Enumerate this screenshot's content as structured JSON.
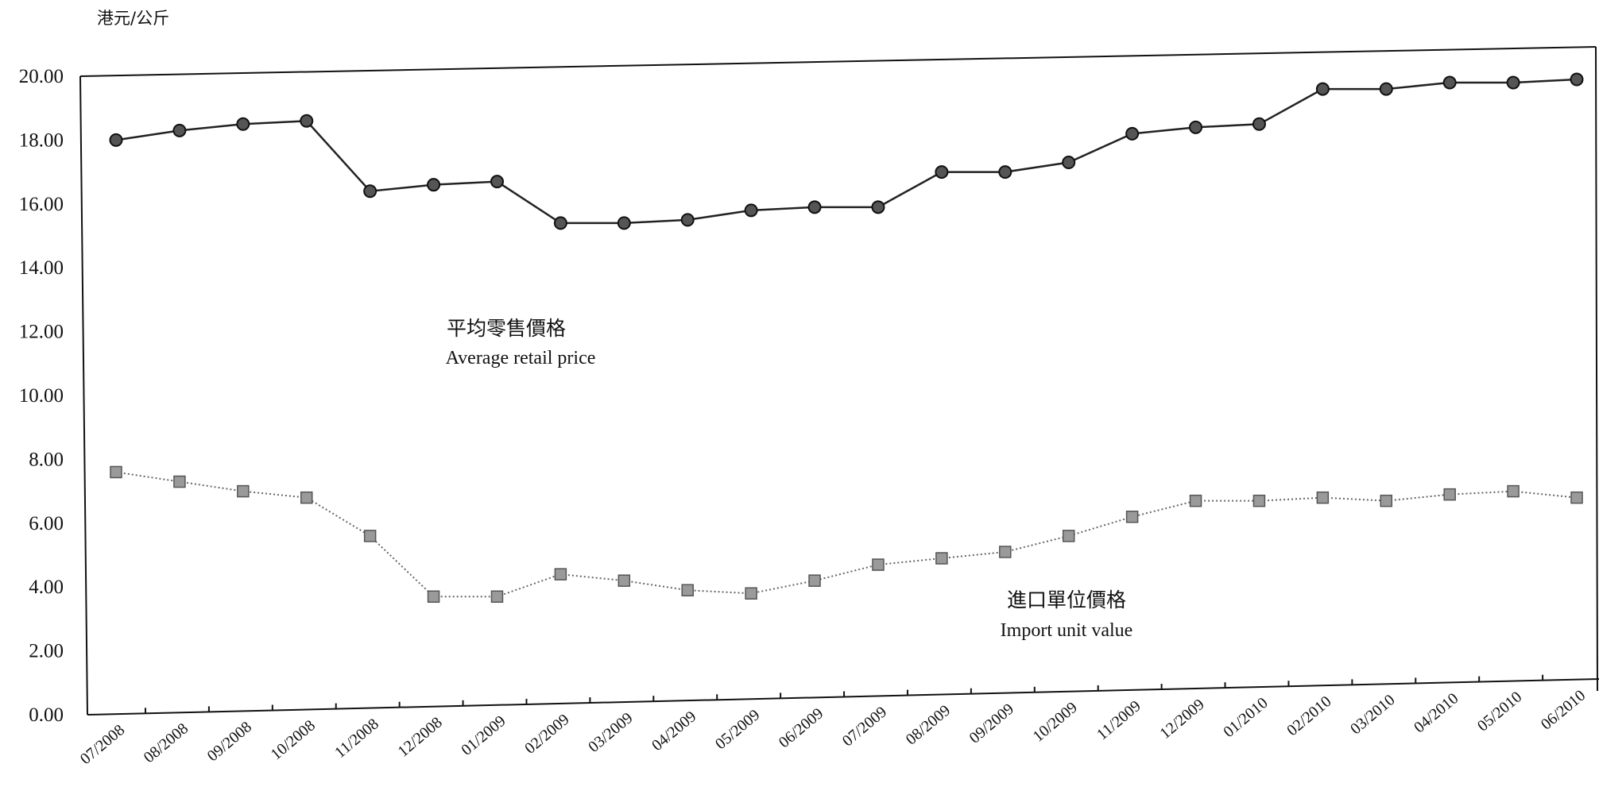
{
  "chart_data": {
    "type": "line",
    "unit_label": "港元/公斤",
    "categories": [
      "07/2008",
      "08/2008",
      "09/2008",
      "10/2008",
      "11/2008",
      "12/2008",
      "01/2009",
      "02/2009",
      "03/2009",
      "04/2009",
      "05/2009",
      "06/2009",
      "07/2009",
      "08/2009",
      "09/2009",
      "10/2009",
      "11/2009",
      "12/2009",
      "01/2010",
      "02/2010",
      "03/2010",
      "04/2010",
      "05/2010",
      "06/2010"
    ],
    "y_ticks": [
      "0.00",
      "2.00",
      "4.00",
      "6.00",
      "8.00",
      "10.00",
      "12.00",
      "14.00",
      "16.00",
      "18.00",
      "20.00"
    ],
    "ylim": [
      0,
      20
    ],
    "grid": false,
    "series": [
      {
        "name_zh": "平均零售價格",
        "name_en": "Average retail price",
        "color": "#222222",
        "marker": "circle",
        "line": "solid",
        "values": [
          18.0,
          18.3,
          18.5,
          18.6,
          16.4,
          16.6,
          16.7,
          15.4,
          15.4,
          15.5,
          15.8,
          15.9,
          15.9,
          17.0,
          17.0,
          17.3,
          18.2,
          18.4,
          18.5,
          19.6,
          19.6,
          19.8,
          19.8,
          19.9
        ]
      },
      {
        "name_zh": "進口單位價格",
        "name_en": "Import unit value",
        "color": "#666666",
        "marker": "square",
        "line": "dotted",
        "values": [
          7.6,
          7.3,
          7.0,
          6.8,
          5.6,
          3.7,
          3.7,
          4.4,
          4.2,
          3.9,
          3.8,
          4.2,
          4.7,
          4.9,
          5.1,
          5.6,
          6.2,
          6.7,
          6.7,
          6.8,
          6.7,
          6.9,
          7.0,
          6.8
        ]
      }
    ]
  }
}
